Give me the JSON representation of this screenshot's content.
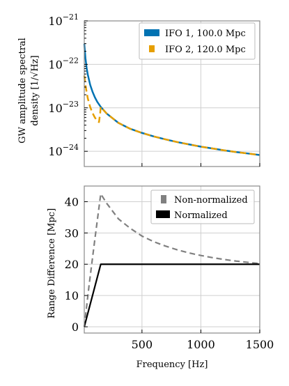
{
  "chart_data": [
    {
      "type": "line",
      "ylabel_line1": "GW amplitude spectral",
      "ylabel_line2": "density [1/√Hz]",
      "xlim": [
        10,
        1500
      ],
      "ylim_log": [
        -24.35,
        -21
      ],
      "y_scale": "log",
      "grid": true,
      "legend_position": "top-right",
      "x_ticks": [
        500,
        1000,
        1500
      ],
      "y_tick_exponents": [
        -21,
        -22,
        -23,
        -24
      ],
      "y_tick_base": "10",
      "series": [
        {
          "name": "IFO 1,  100.0 Mpc",
          "color": "#0072b2",
          "style": "solid",
          "x": [
            10,
            20,
            30,
            40,
            60,
            80,
            100,
            120,
            150,
            200,
            300,
            400,
            500,
            600,
            700,
            800,
            900,
            1000,
            1100,
            1200,
            1300,
            1400,
            1500
          ],
          "y": [
            3e-22,
            1.4e-22,
            8.3e-23,
            5.8e-23,
            3.4e-23,
            2.35e-23,
            1.75e-23,
            1.38e-23,
            1.05e-23,
            7.4e-24,
            4.5e-24,
            3.3e-24,
            2.65e-24,
            2.2e-24,
            1.88e-24,
            1.63e-24,
            1.44e-24,
            1.28e-24,
            1.16e-24,
            1.05e-24,
            9.6e-25,
            8.9e-25,
            8.2e-25
          ]
        },
        {
          "name": "IFO 2,  120.0 Mpc",
          "color": "#e69f00",
          "style": "dashed",
          "x": [
            10,
            20,
            40,
            60,
            80,
            100,
            120,
            135,
            145,
            150,
            200,
            300,
            400,
            500,
            600,
            700,
            800,
            900,
            1000,
            1100,
            1200,
            1300,
            1400,
            1500
          ],
          "y": [
            5.5e-23,
            3.3e-23,
            1.65e-23,
            1.05e-23,
            7.6e-24,
            6e-24,
            5e-24,
            4.7e-24,
            7.5e-24,
            1.05e-23,
            7.4e-24,
            4.5e-24,
            3.3e-24,
            2.65e-24,
            2.2e-24,
            1.88e-24,
            1.63e-24,
            1.44e-24,
            1.28e-24,
            1.16e-24,
            1.05e-24,
            9.6e-25,
            8.9e-25,
            8.2e-25
          ]
        }
      ]
    },
    {
      "type": "line",
      "xlabel": "Frequency [Hz]",
      "ylabel": "Range Difference [Mpc]",
      "xlim": [
        10,
        1500
      ],
      "ylim": [
        -2,
        45
      ],
      "grid": true,
      "legend_position": "top-right",
      "x_ticks": [
        500,
        1000,
        1500
      ],
      "x_tick_labels": [
        "500",
        "1000",
        "1500"
      ],
      "y_ticks": [
        0,
        10,
        20,
        30,
        40
      ],
      "y_tick_labels": [
        "0",
        "10",
        "20",
        "30",
        "40"
      ],
      "series": [
        {
          "name": "Non-normalized",
          "color": "#808080",
          "style": "dashed",
          "x": [
            10,
            50,
            100,
            150,
            200,
            300,
            400,
            500,
            600,
            700,
            800,
            900,
            1000,
            1100,
            1200,
            1300,
            1400,
            1500
          ],
          "y": [
            0,
            13,
            28,
            42.5,
            39.5,
            34.5,
            31.5,
            29,
            27.2,
            25.8,
            24.6,
            23.6,
            22.8,
            22.1,
            21.5,
            21,
            20.6,
            20.2
          ]
        },
        {
          "name": "Normalized",
          "color": "#000000",
          "style": "solid",
          "x": [
            10,
            150,
            200,
            500,
            1000,
            1500
          ],
          "y": [
            0,
            20,
            20,
            20,
            20,
            20
          ]
        }
      ]
    }
  ]
}
